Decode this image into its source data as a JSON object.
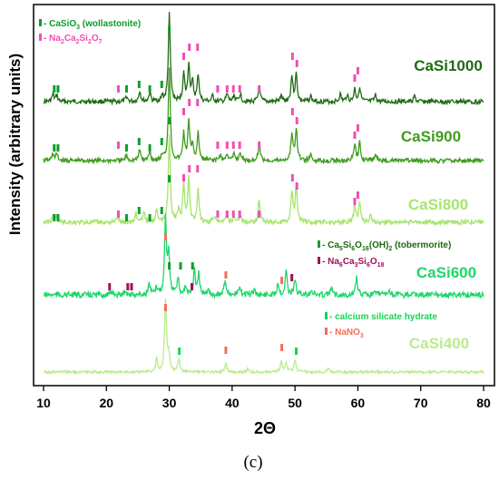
{
  "chart_data": {
    "type": "line",
    "xlabel": "2Θ",
    "ylabel": "Intensity (arbitrary units)",
    "xlim": [
      10,
      80
    ],
    "xticks": [
      10,
      20,
      30,
      40,
      50,
      60,
      70,
      80
    ],
    "caption": "(c)",
    "series": [
      {
        "name": "CaSi1000",
        "color": "#1e6b12",
        "baseline": 112,
        "noise": 2.5,
        "peaks": [
          [
            11.5,
            8
          ],
          [
            12.1,
            7
          ],
          [
            23.2,
            6
          ],
          [
            25.3,
            12
          ],
          [
            26.9,
            10
          ],
          [
            28.9,
            6
          ],
          [
            30.0,
            96
          ],
          [
            32.3,
            30
          ],
          [
            33.1,
            42
          ],
          [
            33.7,
            20
          ],
          [
            34.6,
            30
          ],
          [
            36.9,
            6
          ],
          [
            39.2,
            8
          ],
          [
            40.3,
            7
          ],
          [
            41.3,
            9
          ],
          [
            44.3,
            16
          ],
          [
            47.8,
            6
          ],
          [
            49.5,
            28
          ],
          [
            50.2,
            30
          ],
          [
            52.5,
            6
          ],
          [
            57.2,
            8
          ],
          [
            58.3,
            8
          ],
          [
            59.5,
            14
          ],
          [
            60.3,
            16
          ],
          [
            62.8,
            7
          ],
          [
            69.0,
            6
          ]
        ]
      },
      {
        "name": "CaSi900",
        "color": "#3f9c1f",
        "baseline": 177,
        "noise": 2.5,
        "peaks": [
          [
            11.5,
            8
          ],
          [
            12.1,
            7
          ],
          [
            23.2,
            6
          ],
          [
            25.3,
            12
          ],
          [
            26.9,
            10
          ],
          [
            28.9,
            6
          ],
          [
            30.0,
            104
          ],
          [
            32.3,
            30
          ],
          [
            33.1,
            42
          ],
          [
            33.7,
            18
          ],
          [
            34.6,
            30
          ],
          [
            38.1,
            6
          ],
          [
            39.2,
            8
          ],
          [
            40.3,
            7
          ],
          [
            41.3,
            9
          ],
          [
            44.3,
            20
          ],
          [
            49.5,
            30
          ],
          [
            50.2,
            36
          ],
          [
            52.5,
            6
          ],
          [
            59.5,
            18
          ],
          [
            60.3,
            20
          ],
          [
            62.8,
            7
          ]
        ]
      },
      {
        "name": "CaSi800",
        "color": "#a6e46e",
        "baseline": 245,
        "noise": 2.6,
        "peaks": [
          [
            11.5,
            7
          ],
          [
            12.1,
            6
          ],
          [
            21.8,
            6
          ],
          [
            24.7,
            10
          ],
          [
            26.0,
            12
          ],
          [
            28.0,
            16
          ],
          [
            30.0,
            98
          ],
          [
            31.5,
            14
          ],
          [
            32.3,
            40
          ],
          [
            33.1,
            50
          ],
          [
            34.6,
            36
          ],
          [
            37.1,
            7
          ],
          [
            39.2,
            8
          ],
          [
            40.3,
            7
          ],
          [
            41.3,
            9
          ],
          [
            44.3,
            26
          ],
          [
            49.5,
            34
          ],
          [
            50.2,
            42
          ],
          [
            59.5,
            20
          ],
          [
            60.3,
            22
          ],
          [
            62.0,
            8
          ]
        ]
      },
      {
        "name": "CaSi600",
        "color": "#1ed66a",
        "baseline": 325,
        "noise": 3.2,
        "peaks": [
          [
            21.0,
            4
          ],
          [
            23.0,
            6
          ],
          [
            26.8,
            12
          ],
          [
            28.0,
            8
          ],
          [
            29.4,
            84
          ],
          [
            29.9,
            46
          ],
          [
            31.4,
            18
          ],
          [
            32.6,
            10
          ],
          [
            34.0,
            26
          ],
          [
            34.7,
            22
          ],
          [
            36.2,
            6
          ],
          [
            38.9,
            18
          ],
          [
            41.2,
            8
          ],
          [
            43.5,
            6
          ],
          [
            47.3,
            14
          ],
          [
            48.6,
            28
          ],
          [
            50.0,
            18
          ],
          [
            52.6,
            6
          ],
          [
            55.8,
            8
          ],
          [
            59.8,
            20
          ],
          [
            63.0,
            6
          ],
          [
            65.0,
            5
          ]
        ]
      },
      {
        "name": "CaSi400",
        "color": "#b8ec8c",
        "baseline": 410,
        "noise": 1.5,
        "peaks": [
          [
            28.0,
            16
          ],
          [
            29.4,
            78
          ],
          [
            29.9,
            20
          ],
          [
            31.5,
            14
          ],
          [
            39.0,
            10
          ],
          [
            42.5,
            4
          ],
          [
            47.8,
            12
          ],
          [
            48.6,
            10
          ],
          [
            50.0,
            14
          ],
          [
            55.3,
            4
          ]
        ]
      }
    ],
    "markers": [
      {
        "phase": "CaSiO3 (wollastonite)",
        "color": "#0a9e2a",
        "y": 33,
        "x": [
          30.0
        ]
      },
      {
        "phase": "CaSiO3 (wollastonite)",
        "color": "#0a9e2a",
        "y": 93,
        "x": [
          25.2,
          28.8
        ]
      },
      {
        "phase": "CaSiO3 (wollastonite)",
        "color": "#0a9e2a",
        "y": 98,
        "x": [
          11.7,
          12.3,
          23.2,
          26.9
        ]
      },
      {
        "phase": "Na2Ca2Si2O7",
        "color": "#ee4fb4",
        "y": 52,
        "x": [
          33.2,
          34.5
        ]
      },
      {
        "phase": "Na2Ca2Si2O7",
        "color": "#ee4fb4",
        "y": 62,
        "x": [
          32.3,
          49.6
        ]
      },
      {
        "phase": "Na2Ca2Si2O7",
        "color": "#ee4fb4",
        "y": 70,
        "x": [
          50.3
        ]
      },
      {
        "phase": "Na2Ca2Si2O7",
        "color": "#ee4fb4",
        "y": 78,
        "x": [
          60.0
        ]
      },
      {
        "phase": "Na2Ca2Si2O7",
        "color": "#ee4fb4",
        "y": 86,
        "x": [
          59.5
        ]
      },
      {
        "phase": "Na2Ca2Si2O7",
        "color": "#ee4fb4",
        "y": 98,
        "x": [
          21.9,
          37.7,
          39.2,
          40.2,
          41.2,
          44.3
        ]
      },
      {
        "phase": "CaSiO3 (wollastonite)",
        "color": "#0a9e2a",
        "y": 133,
        "x": [
          30.0
        ]
      },
      {
        "phase": "CaSiO3 (wollastonite)",
        "color": "#0a9e2a",
        "y": 156,
        "x": [
          25.2,
          28.8
        ]
      },
      {
        "phase": "CaSiO3 (wollastonite)",
        "color": "#0a9e2a",
        "y": 163,
        "x": [
          11.7,
          12.3,
          23.2,
          26.9
        ]
      },
      {
        "phase": "Na2Ca2Si2O7",
        "color": "#ee4fb4",
        "y": 113,
        "x": [
          33.2,
          34.5
        ]
      },
      {
        "phase": "Na2Ca2Si2O7",
        "color": "#ee4fb4",
        "y": 123,
        "x": [
          32.3,
          49.6
        ]
      },
      {
        "phase": "Na2Ca2Si2O7",
        "color": "#ee4fb4",
        "y": 133,
        "x": [
          50.3
        ]
      },
      {
        "phase": "Na2Ca2Si2O7",
        "color": "#ee4fb4",
        "y": 141,
        "x": [
          60.0
        ]
      },
      {
        "phase": "Na2Ca2Si2O7",
        "color": "#ee4fb4",
        "y": 149,
        "x": [
          59.5
        ]
      },
      {
        "phase": "Na2Ca2Si2O7",
        "color": "#ee4fb4",
        "y": 160,
        "x": [
          21.9,
          37.7,
          39.2,
          40.2,
          41.2,
          44.3
        ]
      },
      {
        "phase": "CaSiO3 (wollastonite)",
        "color": "#0a9e2a",
        "y": 197,
        "x": [
          30.0
        ]
      },
      {
        "phase": "CaSiO3 (wollastonite)",
        "color": "#0a9e2a",
        "y": 232,
        "x": [
          25.2,
          28.8
        ]
      },
      {
        "phase": "CaSiO3 (wollastonite)",
        "color": "#0a9e2a",
        "y": 240,
        "x": [
          11.7,
          12.3,
          23.2,
          26.9
        ]
      },
      {
        "phase": "Na2Ca2Si2O7",
        "color": "#ee4fb4",
        "y": 186,
        "x": [
          33.2,
          34.5
        ]
      },
      {
        "phase": "Na2Ca2Si2O7",
        "color": "#ee4fb4",
        "y": 196,
        "x": [
          32.3,
          49.6
        ]
      },
      {
        "phase": "Na2Ca2Si2O7",
        "color": "#ee4fb4",
        "y": 205,
        "x": [
          50.3
        ]
      },
      {
        "phase": "Na2Ca2Si2O7",
        "color": "#ee4fb4",
        "y": 215,
        "x": [
          60.0
        ]
      },
      {
        "phase": "Na2Ca2Si2O7",
        "color": "#ee4fb4",
        "y": 222,
        "x": [
          59.5
        ]
      },
      {
        "phase": "Na2Ca2Si2O7",
        "color": "#ee4fb4",
        "y": 236,
        "x": [
          21.9,
          37.7,
          39.2,
          40.2,
          41.2,
          44.3
        ]
      },
      {
        "phase": "Ca5Si6O16(OH)2 (tobermorite)",
        "color": "#0a9e2a",
        "y": 293,
        "x": [
          30.0,
          31.8,
          33.7
        ]
      },
      {
        "phase": "Na6Ca3Si6O18",
        "color": "#a0105a",
        "y": 306,
        "x": [
          49.5
        ]
      },
      {
        "phase": "Na6Ca3Si6O18",
        "color": "#a0105a",
        "y": 316,
        "x": [
          20.5,
          23.4,
          24.0,
          33.6
        ]
      },
      {
        "phase": "NaNO3",
        "color": "#f26e5a",
        "y": 261,
        "x": [
          29.4
        ]
      },
      {
        "phase": "NaNO3",
        "color": "#f26e5a",
        "y": 303,
        "x": [
          39.0
        ]
      },
      {
        "phase": "NaNO3",
        "color": "#f26e5a",
        "y": 309,
        "x": [
          47.9
        ]
      },
      {
        "phase": "calcium silicate hydrate",
        "color": "#16d650",
        "y": 387,
        "x": [
          31.6,
          50.2
        ]
      },
      {
        "phase": "NaNO3",
        "color": "#f26e5a",
        "y": 339,
        "x": [
          29.4
        ]
      },
      {
        "phase": "NaNO3",
        "color": "#f26e5a",
        "y": 386,
        "x": [
          39.0
        ]
      },
      {
        "phase": "NaNO3",
        "color": "#f26e5a",
        "y": 383,
        "x": [
          47.9
        ]
      }
    ]
  },
  "legends": {
    "group1": [
      {
        "prefix": "- ",
        "base": "CaSiO",
        "sub": "3",
        "rest": " (wollastonite)",
        "color": "#0a9e2a",
        "text_color": "#0a9e2a"
      },
      {
        "prefix": "- ",
        "base": "Na",
        "sub": "2",
        "rest2": "Ca",
        "sub2": "2",
        "rest3": "Si",
        "sub3": "2",
        "rest4": "O",
        "sub4": "7",
        "color": "#ee4fb4",
        "text_color": "#ee4fb4"
      }
    ],
    "group2": [
      {
        "prefix": "- ",
        "text": "Ca",
        "s1": "5",
        "t2": "Si",
        "s2": "6",
        "t3": "O",
        "s3": "16",
        "t4": "(OH)",
        "s4": "2",
        "t5": " (tobermorite)",
        "color": "#0a9e2a",
        "text_color": "#1c6b10"
      },
      {
        "prefix": "- ",
        "text": "Na",
        "s1": "6",
        "t2": "Ca",
        "s2": "3",
        "t3": "Si",
        "s3": "6",
        "t4": "O",
        "s4": "18",
        "t5": "",
        "color": "#a0105a",
        "text_color": "#a0105a"
      }
    ],
    "group3": [
      {
        "prefix": "- ",
        "text": "calcium silicate hydrate",
        "color": "#16d650",
        "text_color": "#16d650"
      },
      {
        "prefix": "- ",
        "text": "NaNO",
        "s1": "3",
        "color": "#f26e5a",
        "text_color": "#f26e5a"
      }
    ]
  }
}
